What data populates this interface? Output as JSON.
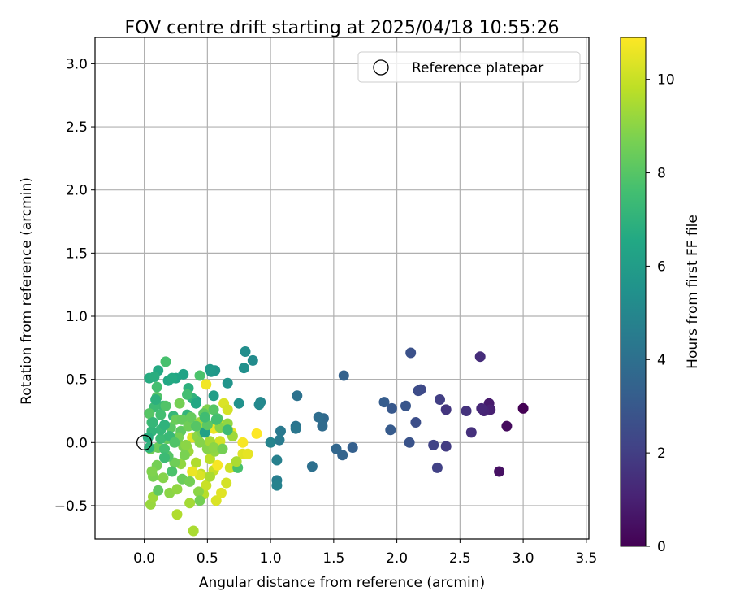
{
  "chart_data": {
    "type": "scatter",
    "title": "FOV centre drift starting at 2025/04/18 10:55:26",
    "xlabel": "Angular distance from reference (arcmin)",
    "ylabel": "Rotation from reference (arcmin)",
    "xlim": [
      -0.39,
      3.52
    ],
    "ylim": [
      -0.76,
      3.15
    ],
    "xticks": [
      0.0,
      0.5,
      1.0,
      1.5,
      2.0,
      2.5,
      3.0,
      3.5
    ],
    "xtick_labels": [
      "0.0",
      "0.5",
      "1.0",
      "1.5",
      "2.0",
      "2.5",
      "3.0",
      "3.5"
    ],
    "yticks": [
      -0.5,
      0.0,
      0.5,
      1.0,
      1.5,
      2.0,
      2.5,
      3.0
    ],
    "ytick_labels": [
      "−0.5",
      "0.0",
      "0.5",
      "1.0",
      "1.5",
      "2.0",
      "2.5",
      "3.0"
    ],
    "grid": true,
    "legend": {
      "position": "top-right",
      "entries": [
        {
          "label": "Reference platepar",
          "marker": "open-circle"
        }
      ]
    },
    "reference_point": {
      "x": 0.0,
      "y": 0.0
    },
    "colorbar": {
      "label": "Hours from first FF file",
      "colormap": "viridis",
      "range": [
        0,
        10.9
      ],
      "ticks": [
        0,
        2,
        4,
        6,
        8,
        10
      ],
      "tick_labels": [
        "0",
        "2",
        "4",
        "6",
        "8",
        "10"
      ]
    },
    "points": [
      [
        3.0,
        0.27,
        0.0
      ],
      [
        2.87,
        0.13,
        0.3
      ],
      [
        2.81,
        -0.23,
        0.5
      ],
      [
        2.73,
        0.31,
        0.8
      ],
      [
        2.74,
        0.26,
        1.0
      ],
      [
        2.69,
        0.25,
        1.1
      ],
      [
        2.67,
        0.27,
        1.2
      ],
      [
        2.66,
        0.68,
        1.4
      ],
      [
        2.59,
        0.08,
        1.5
      ],
      [
        2.55,
        0.25,
        1.6
      ],
      [
        2.39,
        0.26,
        1.7
      ],
      [
        2.39,
        -0.03,
        1.9
      ],
      [
        2.34,
        0.34,
        2.0
      ],
      [
        2.32,
        -0.2,
        2.1
      ],
      [
        2.29,
        -0.02,
        2.2
      ],
      [
        2.19,
        0.42,
        2.4
      ],
      [
        2.17,
        0.41,
        2.5
      ],
      [
        2.15,
        0.16,
        2.6
      ],
      [
        2.11,
        0.71,
        2.7
      ],
      [
        2.1,
        0.0,
        2.8
      ],
      [
        2.07,
        0.29,
        2.9
      ],
      [
        1.96,
        0.27,
        3.0
      ],
      [
        1.95,
        0.1,
        3.1
      ],
      [
        1.9,
        0.32,
        3.2
      ],
      [
        1.65,
        -0.04,
        3.3
      ],
      [
        1.58,
        0.53,
        3.4
      ],
      [
        1.57,
        -0.1,
        3.5
      ],
      [
        1.52,
        -0.05,
        3.6
      ],
      [
        1.42,
        0.19,
        3.7
      ],
      [
        1.41,
        0.13,
        3.8
      ],
      [
        1.38,
        0.2,
        3.9
      ],
      [
        1.33,
        -0.19,
        4.0
      ],
      [
        1.21,
        0.37,
        4.1
      ],
      [
        1.2,
        0.13,
        4.2
      ],
      [
        1.2,
        0.11,
        4.3
      ],
      [
        1.08,
        0.09,
        4.4
      ],
      [
        1.07,
        0.02,
        4.5
      ],
      [
        1.05,
        -0.3,
        4.6
      ],
      [
        1.05,
        -0.14,
        4.7
      ],
      [
        1.05,
        -0.34,
        4.8
      ],
      [
        1.0,
        0.0,
        4.9
      ],
      [
        0.92,
        0.32,
        5.0
      ],
      [
        0.91,
        0.3,
        5.1
      ],
      [
        0.86,
        0.65,
        5.2
      ],
      [
        0.8,
        0.72,
        5.3
      ],
      [
        0.79,
        0.59,
        5.4
      ],
      [
        0.75,
        0.31,
        5.5
      ],
      [
        0.66,
        0.47,
        5.6
      ],
      [
        0.56,
        0.57,
        5.7
      ],
      [
        0.53,
        0.56,
        5.8
      ],
      [
        0.52,
        0.58,
        5.9
      ],
      [
        0.55,
        0.37,
        6.0
      ],
      [
        0.49,
        0.1,
        6.1
      ],
      [
        0.41,
        0.33,
        6.2
      ],
      [
        0.31,
        0.54,
        6.3
      ],
      [
        0.25,
        0.51,
        6.4
      ],
      [
        0.19,
        0.49,
        6.5
      ],
      [
        0.11,
        0.57,
        6.6
      ],
      [
        0.04,
        0.51,
        6.7
      ],
      [
        0.08,
        0.52,
        6.8
      ],
      [
        0.35,
        0.43,
        6.9
      ],
      [
        0.38,
        0.35,
        7.0
      ],
      [
        0.34,
        0.22,
        7.1
      ],
      [
        0.23,
        0.21,
        7.2
      ],
      [
        0.15,
        0.29,
        7.3
      ],
      [
        0.08,
        0.28,
        7.4
      ],
      [
        0.06,
        0.16,
        7.5
      ],
      [
        0.1,
        0.44,
        7.6
      ],
      [
        0.17,
        0.64,
        7.7
      ],
      [
        0.44,
        0.53,
        7.8
      ],
      [
        0.1,
        0.36,
        7.9
      ],
      [
        0.04,
        0.23,
        8.0
      ],
      [
        0.21,
        0.12,
        8.1
      ],
      [
        0.29,
        0.09,
        8.2
      ],
      [
        0.18,
        0.03,
        8.3
      ],
      [
        0.11,
        -0.04,
        8.4
      ],
      [
        0.05,
        -0.05,
        8.5
      ],
      [
        0.1,
        -0.18,
        8.6
      ],
      [
        0.07,
        -0.27,
        8.7
      ],
      [
        0.06,
        -0.23,
        8.8
      ],
      [
        0.15,
        -0.28,
        8.9
      ],
      [
        0.2,
        -0.4,
        9.0
      ],
      [
        0.26,
        -0.37,
        9.1
      ],
      [
        0.05,
        -0.49,
        9.2
      ],
      [
        0.07,
        -0.43,
        9.3
      ],
      [
        0.36,
        -0.48,
        9.4
      ],
      [
        0.39,
        -0.7,
        9.5
      ],
      [
        0.26,
        -0.57,
        9.6
      ],
      [
        0.29,
        -0.17,
        9.1
      ],
      [
        0.35,
        -0.07,
        9.3
      ],
      [
        0.41,
        -0.16,
        9.6
      ],
      [
        0.45,
        -0.25,
        9.9
      ],
      [
        0.47,
        -0.41,
        9.7
      ],
      [
        0.52,
        -0.13,
        9.8
      ],
      [
        0.55,
        -0.22,
        10.0
      ],
      [
        0.6,
        0.01,
        10.2
      ],
      [
        0.63,
        0.31,
        10.3
      ],
      [
        0.66,
        0.26,
        10.2
      ],
      [
        0.69,
        0.08,
        10.5
      ],
      [
        0.68,
        -0.2,
        10.1
      ],
      [
        0.65,
        -0.32,
        10.2
      ],
      [
        0.57,
        -0.46,
        10.3
      ],
      [
        0.61,
        -0.4,
        10.4
      ],
      [
        0.49,
        -0.34,
        10.0
      ],
      [
        0.44,
        -0.26,
        10.3
      ],
      [
        0.38,
        -0.23,
        10.6
      ],
      [
        0.49,
        0.46,
        10.7
      ],
      [
        0.78,
        -0.09,
        10.4
      ],
      [
        0.78,
        0.0,
        10.8
      ],
      [
        0.82,
        -0.09,
        10.5
      ],
      [
        0.89,
        0.07,
        10.9
      ],
      [
        0.55,
        0.11,
        10.6
      ],
      [
        0.58,
        -0.18,
        10.8
      ],
      [
        0.62,
        0.14,
        10.1
      ],
      [
        0.38,
        0.04,
        10.4
      ],
      [
        0.44,
        0.16,
        9.3
      ],
      [
        0.42,
        0.05,
        9.0
      ],
      [
        0.34,
        -0.04,
        9.2
      ],
      [
        0.31,
        -0.03,
        8.8
      ],
      [
        0.27,
        0.04,
        8.6
      ],
      [
        0.25,
        0.18,
        8.4
      ],
      [
        0.3,
        0.18,
        8.3
      ],
      [
        0.35,
        0.13,
        8.5
      ],
      [
        0.46,
        0.08,
        8.7
      ],
      [
        0.5,
        0.26,
        8.8
      ],
      [
        0.47,
        0.23,
        8.2
      ],
      [
        0.55,
        0.26,
        8.0
      ],
      [
        0.58,
        0.19,
        7.8
      ],
      [
        0.6,
        0.12,
        8.9
      ],
      [
        0.66,
        0.15,
        9.1
      ],
      [
        0.7,
        0.05,
        9.3
      ],
      [
        0.74,
        -0.2,
        7.7
      ],
      [
        0.73,
        -0.15,
        9.5
      ],
      [
        0.56,
        -0.07,
        9.1
      ],
      [
        0.5,
        -0.05,
        8.9
      ],
      [
        0.32,
        -0.1,
        8.7
      ],
      [
        0.24,
        -0.16,
        8.5
      ],
      [
        0.19,
        -0.11,
        8.0
      ],
      [
        0.16,
        -0.05,
        7.6
      ],
      [
        0.13,
        0.03,
        7.4
      ],
      [
        0.13,
        0.1,
        7.2
      ],
      [
        0.16,
        0.14,
        7.0
      ],
      [
        0.2,
        0.05,
        7.3
      ],
      [
        0.24,
        0.0,
        7.9
      ],
      [
        0.11,
        -0.38,
        8.2
      ],
      [
        0.16,
        -0.12,
        7.4
      ],
      [
        0.06,
        0.09,
        7.1
      ],
      [
        0.03,
        0.04,
        6.8
      ],
      [
        0.04,
        -0.04,
        7.0
      ],
      [
        0.22,
        -0.23,
        7.8
      ],
      [
        0.3,
        -0.29,
        8.4
      ],
      [
        0.36,
        -0.31,
        8.6
      ],
      [
        0.43,
        -0.39,
        9.0
      ],
      [
        0.44,
        -0.46,
        8.6
      ],
      [
        0.33,
        -0.02,
        9.0
      ],
      [
        0.28,
        0.31,
        8.6
      ],
      [
        0.37,
        0.2,
        8.3
      ],
      [
        0.41,
        0.13,
        8.0
      ],
      [
        0.44,
        0.0,
        8.9
      ],
      [
        0.52,
        0.01,
        9.4
      ],
      [
        0.52,
        -0.27,
        9.5
      ],
      [
        0.55,
        -0.04,
        9.0
      ],
      [
        0.62,
        -0.05,
        8.6
      ],
      [
        0.48,
        0.08,
        6.2
      ],
      [
        0.57,
        0.18,
        7.6
      ],
      [
        0.5,
        0.14,
        8.1
      ],
      [
        0.17,
        0.29,
        7.9
      ],
      [
        0.13,
        0.22,
        7.6
      ],
      [
        0.09,
        0.34,
        6.9
      ],
      [
        0.07,
        0.16,
        7.2
      ],
      [
        0.22,
        0.51,
        6.6
      ],
      [
        0.41,
        0.31,
        6.5
      ],
      [
        0.34,
        0.38,
        7.6
      ],
      [
        0.66,
        0.1,
        7.4
      ],
      [
        0.48,
        0.2,
        7.5
      ]
    ]
  }
}
